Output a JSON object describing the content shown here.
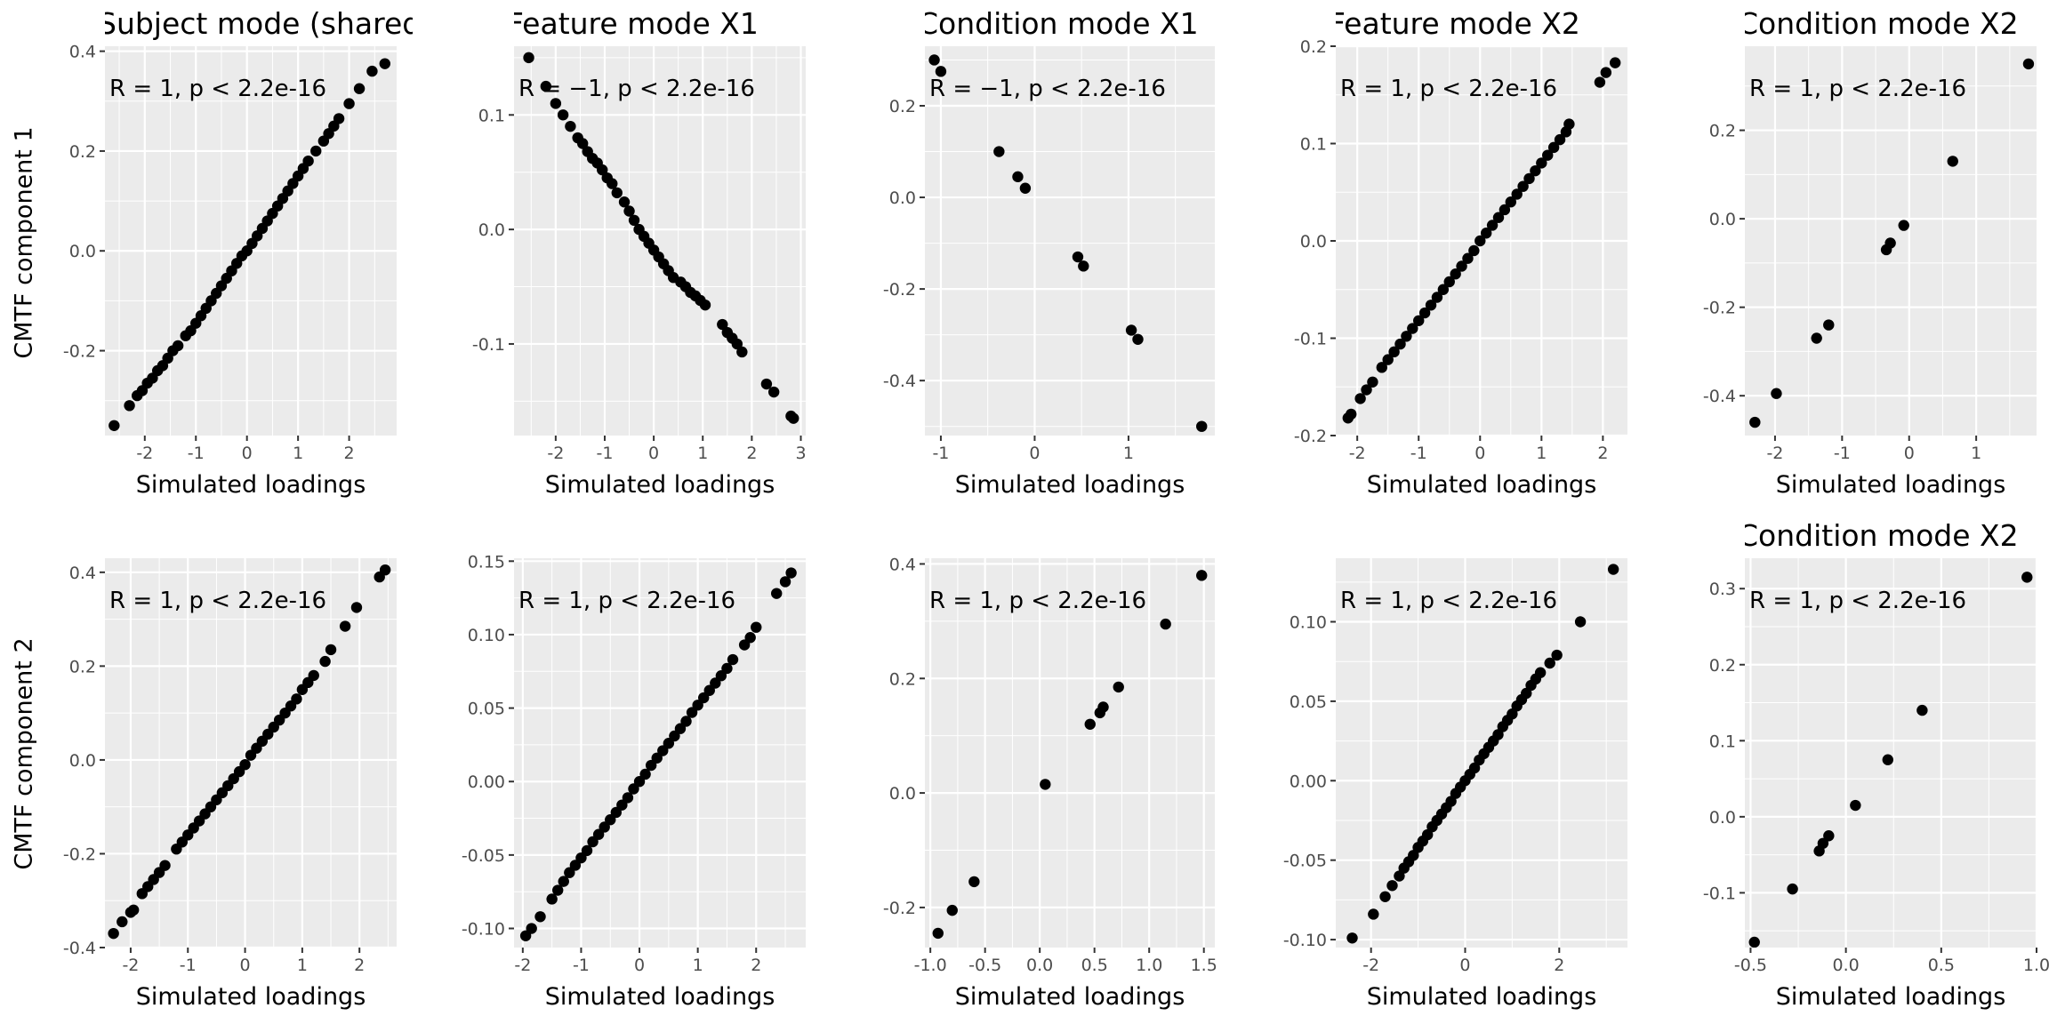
{
  "row_labels": [
    "CMTF component 1",
    "CMTF component 2"
  ],
  "chart_data": [
    {
      "type": "scatter",
      "title": "Subject mode (shared)",
      "xlabel": "Simulated loadings",
      "ylabel": "CMTF component 1",
      "annotation": "R = 1, p < 2.2e-16",
      "xticks": [
        "-2",
        "-1",
        "0",
        "1",
        "2"
      ],
      "yticks": [
        "-0.2",
        "0.0",
        "0.2",
        "0.4"
      ],
      "xlim": [
        -2.78,
        2.93
      ],
      "ylim": [
        -0.37,
        0.41
      ],
      "x": [
        -2.6,
        -2.3,
        -2.15,
        -2.05,
        -1.95,
        -1.85,
        -1.75,
        -1.65,
        -1.55,
        -1.45,
        -1.35,
        -1.2,
        -1.1,
        -1.0,
        -0.9,
        -0.8,
        -0.7,
        -0.6,
        -0.5,
        -0.4,
        -0.3,
        -0.2,
        -0.1,
        0.0,
        0.1,
        0.2,
        0.3,
        0.4,
        0.5,
        0.6,
        0.7,
        0.8,
        0.9,
        1.0,
        1.1,
        1.2,
        1.35,
        1.5,
        1.6,
        1.7,
        1.8,
        2.0,
        2.2,
        2.45,
        2.7
      ],
      "y": [
        -0.35,
        -0.31,
        -0.29,
        -0.28,
        -0.265,
        -0.255,
        -0.24,
        -0.23,
        -0.215,
        -0.2,
        -0.19,
        -0.17,
        -0.16,
        -0.145,
        -0.13,
        -0.115,
        -0.1,
        -0.085,
        -0.07,
        -0.055,
        -0.04,
        -0.025,
        -0.01,
        0.0,
        0.015,
        0.03,
        0.045,
        0.06,
        0.075,
        0.09,
        0.105,
        0.12,
        0.135,
        0.15,
        0.165,
        0.18,
        0.2,
        0.22,
        0.235,
        0.25,
        0.265,
        0.295,
        0.325,
        0.36,
        0.375
      ]
    },
    {
      "type": "scatter",
      "title": "Feature mode X1",
      "xlabel": "Simulated loadings",
      "ylabel": "",
      "annotation": "R = −1, p < 2.2e-16",
      "xticks": [
        "-2",
        "-1",
        "0",
        "1",
        "2",
        "3"
      ],
      "yticks": [
        "-0.1",
        "0.0",
        "0.1"
      ],
      "xlim": [
        -2.85,
        3.1
      ],
      "ylim": [
        -0.18,
        0.16
      ],
      "x": [
        -2.55,
        -2.2,
        -2.0,
        -1.85,
        -1.7,
        -1.55,
        -1.45,
        -1.35,
        -1.25,
        -1.15,
        -1.05,
        -0.95,
        -0.85,
        -0.75,
        -0.6,
        -0.5,
        -0.4,
        -0.3,
        -0.2,
        -0.1,
        0.0,
        0.1,
        0.2,
        0.3,
        0.4,
        0.55,
        0.65,
        0.75,
        0.85,
        0.95,
        1.05,
        1.4,
        1.5,
        1.6,
        1.7,
        1.8,
        2.3,
        2.45,
        2.8,
        2.85
      ],
      "y": [
        0.15,
        0.125,
        0.11,
        0.1,
        0.09,
        0.08,
        0.075,
        0.068,
        0.062,
        0.058,
        0.052,
        0.045,
        0.04,
        0.032,
        0.024,
        0.016,
        0.008,
        0.0,
        -0.006,
        -0.012,
        -0.018,
        -0.024,
        -0.03,
        -0.036,
        -0.042,
        -0.046,
        -0.05,
        -0.055,
        -0.058,
        -0.062,
        -0.066,
        -0.083,
        -0.09,
        -0.095,
        -0.1,
        -0.107,
        -0.135,
        -0.142,
        -0.163,
        -0.165
      ]
    },
    {
      "type": "scatter",
      "title": "Condition mode X1",
      "xlabel": "Simulated loadings",
      "ylabel": "",
      "annotation": "R = −1, p < 2.2e-16",
      "xticks": [
        "-1",
        "0",
        "1"
      ],
      "yticks": [
        "-0.4",
        "-0.2",
        "0.0",
        "0.2"
      ],
      "xlim": [
        -1.17,
        1.92
      ],
      "ylim": [
        -0.52,
        0.33
      ],
      "x": [
        -1.07,
        -1.0,
        -0.38,
        -0.18,
        -0.1,
        0.46,
        0.52,
        1.03,
        1.1,
        1.78
      ],
      "y": [
        0.3,
        0.275,
        0.1,
        0.045,
        0.02,
        -0.13,
        -0.15,
        -0.29,
        -0.31,
        -0.5
      ]
    },
    {
      "type": "scatter",
      "title": "Feature mode X2",
      "xlabel": "Simulated loadings",
      "ylabel": "",
      "annotation": "R = 1, p < 2.2e-16",
      "xticks": [
        "-2",
        "-1",
        "0",
        "1",
        "2"
      ],
      "yticks": [
        "-0.2",
        "-0.1",
        "0.0",
        "0.1",
        "0.2"
      ],
      "xlim": [
        -2.35,
        2.4
      ],
      "ylim": [
        -0.2,
        0.2
      ],
      "x": [
        -2.15,
        -2.1,
        -1.95,
        -1.85,
        -1.75,
        -1.6,
        -1.5,
        -1.4,
        -1.3,
        -1.2,
        -1.1,
        -1.0,
        -0.9,
        -0.8,
        -0.7,
        -0.6,
        -0.5,
        -0.4,
        -0.3,
        -0.2,
        -0.1,
        0.0,
        0.1,
        0.2,
        0.3,
        0.4,
        0.5,
        0.6,
        0.7,
        0.8,
        0.9,
        1.0,
        1.1,
        1.2,
        1.3,
        1.4,
        1.45,
        1.95,
        2.05,
        2.2
      ],
      "y": [
        -0.182,
        -0.178,
        -0.162,
        -0.153,
        -0.145,
        -0.13,
        -0.122,
        -0.114,
        -0.106,
        -0.098,
        -0.09,
        -0.082,
        -0.074,
        -0.066,
        -0.058,
        -0.05,
        -0.042,
        -0.034,
        -0.026,
        -0.018,
        -0.01,
        0.0,
        0.008,
        0.016,
        0.024,
        0.032,
        0.04,
        0.048,
        0.056,
        0.064,
        0.072,
        0.08,
        0.088,
        0.096,
        0.104,
        0.112,
        0.12,
        0.163,
        0.173,
        0.183
      ]
    },
    {
      "type": "scatter",
      "title": "Condition mode X2",
      "xlabel": "Simulated loadings",
      "ylabel": "",
      "annotation": "R = 1, p < 2.2e-16",
      "xticks": [
        "-2",
        "-1",
        "0",
        "1"
      ],
      "yticks": [
        "-0.4",
        "-0.2",
        "0.0",
        "0.2"
      ],
      "xlim": [
        -2.45,
        1.9
      ],
      "ylim": [
        -0.49,
        0.39
      ],
      "x": [
        -2.3,
        -1.98,
        -1.38,
        -1.2,
        -0.34,
        -0.28,
        -0.08,
        0.65,
        1.78
      ],
      "y": [
        -0.46,
        -0.395,
        -0.27,
        -0.24,
        -0.07,
        -0.055,
        -0.015,
        0.13,
        0.35
      ]
    },
    {
      "type": "scatter",
      "title": "",
      "xlabel": "Simulated loadings",
      "ylabel": "CMTF component 2",
      "annotation": "R = 1, p < 2.2e-16",
      "xticks": [
        "-2",
        "-1",
        "0",
        "1",
        "2"
      ],
      "yticks": [
        "-0.4",
        "-0.2",
        "0.0",
        "0.2",
        "0.4"
      ],
      "xlim": [
        -2.45,
        2.65
      ],
      "ylim": [
        -0.4,
        0.43
      ],
      "x": [
        -2.3,
        -2.15,
        -2.0,
        -1.95,
        -1.8,
        -1.7,
        -1.6,
        -1.5,
        -1.4,
        -1.2,
        -1.1,
        -1.0,
        -0.9,
        -0.8,
        -0.7,
        -0.6,
        -0.5,
        -0.4,
        -0.3,
        -0.2,
        -0.1,
        0.0,
        0.1,
        0.2,
        0.3,
        0.4,
        0.5,
        0.6,
        0.7,
        0.8,
        0.9,
        1.0,
        1.1,
        1.2,
        1.4,
        1.5,
        1.75,
        1.95,
        2.35,
        2.45
      ],
      "y": [
        -0.37,
        -0.345,
        -0.325,
        -0.32,
        -0.285,
        -0.27,
        -0.255,
        -0.24,
        -0.225,
        -0.19,
        -0.175,
        -0.16,
        -0.145,
        -0.13,
        -0.115,
        -0.1,
        -0.085,
        -0.07,
        -0.055,
        -0.04,
        -0.025,
        -0.01,
        0.01,
        0.025,
        0.04,
        0.055,
        0.07,
        0.085,
        0.1,
        0.115,
        0.13,
        0.15,
        0.165,
        0.18,
        0.21,
        0.235,
        0.285,
        0.325,
        0.39,
        0.405
      ]
    },
    {
      "type": "scatter",
      "title": "",
      "xlabel": "Simulated loadings",
      "ylabel": "",
      "annotation": "R = 1, p < 2.2e-16",
      "xticks": [
        "-2",
        "-1",
        "0",
        "1",
        "2"
      ],
      "yticks": [
        "-0.10",
        "-0.05",
        "0.00",
        "0.05",
        "0.10",
        "0.15"
      ],
      "xlim": [
        -2.15,
        2.85
      ],
      "ylim": [
        -0.113,
        0.152
      ],
      "x": [
        -1.95,
        -1.85,
        -1.7,
        -1.5,
        -1.4,
        -1.3,
        -1.2,
        -1.1,
        -1.0,
        -0.9,
        -0.8,
        -0.7,
        -0.6,
        -0.5,
        -0.4,
        -0.3,
        -0.2,
        -0.1,
        0.0,
        0.1,
        0.2,
        0.3,
        0.4,
        0.5,
        0.6,
        0.7,
        0.8,
        0.9,
        1.0,
        1.1,
        1.2,
        1.3,
        1.4,
        1.5,
        1.6,
        1.8,
        1.9,
        2.0,
        2.35,
        2.5,
        2.6
      ],
      "y": [
        -0.105,
        -0.1,
        -0.092,
        -0.08,
        -0.074,
        -0.068,
        -0.062,
        -0.057,
        -0.052,
        -0.047,
        -0.041,
        -0.036,
        -0.031,
        -0.026,
        -0.021,
        -0.016,
        -0.011,
        -0.005,
        0.0,
        0.005,
        0.011,
        0.016,
        0.021,
        0.026,
        0.031,
        0.036,
        0.041,
        0.047,
        0.052,
        0.057,
        0.062,
        0.067,
        0.072,
        0.077,
        0.083,
        0.093,
        0.098,
        0.105,
        0.128,
        0.136,
        0.142
      ]
    },
    {
      "type": "scatter",
      "title": "",
      "xlabel": "Simulated loadings",
      "ylabel": "",
      "annotation": "R = 1, p < 2.2e-16",
      "xticks": [
        "-1.0",
        "-0.5",
        "0.0",
        "0.5",
        "1.0",
        "1.5"
      ],
      "yticks": [
        "-0.2",
        "0.0",
        "0.2",
        "0.4"
      ],
      "xlim": [
        -1.05,
        1.6
      ],
      "ylim": [
        -0.27,
        0.41
      ],
      "x": [
        -0.93,
        -0.8,
        -0.6,
        0.05,
        0.46,
        0.55,
        0.58,
        0.72,
        1.15,
        1.48
      ],
      "y": [
        -0.245,
        -0.205,
        -0.155,
        0.015,
        0.12,
        0.14,
        0.15,
        0.185,
        0.295,
        0.38
      ]
    },
    {
      "type": "scatter",
      "title": "",
      "xlabel": "Simulated loadings",
      "ylabel": "",
      "annotation": "R = 1, p < 2.2e-16",
      "xticks": [
        "-2",
        "0",
        "2"
      ],
      "yticks": [
        "-0.10",
        "-0.05",
        "0.00",
        "0.05",
        "0.10"
      ],
      "xlim": [
        -2.75,
        3.45
      ],
      "ylim": [
        -0.105,
        0.14
      ],
      "x": [
        -2.4,
        -1.95,
        -1.7,
        -1.55,
        -1.4,
        -1.3,
        -1.2,
        -1.1,
        -1.0,
        -0.9,
        -0.8,
        -0.7,
        -0.6,
        -0.5,
        -0.4,
        -0.3,
        -0.2,
        -0.1,
        0.0,
        0.1,
        0.2,
        0.3,
        0.4,
        0.5,
        0.6,
        0.7,
        0.8,
        0.9,
        1.0,
        1.1,
        1.2,
        1.3,
        1.4,
        1.5,
        1.6,
        1.8,
        1.95,
        2.45,
        3.15
      ],
      "y": [
        -0.099,
        -0.084,
        -0.073,
        -0.066,
        -0.06,
        -0.055,
        -0.051,
        -0.047,
        -0.042,
        -0.038,
        -0.034,
        -0.029,
        -0.025,
        -0.021,
        -0.017,
        -0.013,
        -0.008,
        -0.004,
        0.0,
        0.004,
        0.008,
        0.013,
        0.017,
        0.021,
        0.025,
        0.029,
        0.034,
        0.038,
        0.042,
        0.047,
        0.051,
        0.055,
        0.06,
        0.064,
        0.068,
        0.074,
        0.079,
        0.1,
        0.133
      ]
    },
    {
      "type": "scatter",
      "title": "Condition mode X2",
      "xlabel": "Simulated loadings",
      "ylabel": "",
      "annotation": "R = 1, p < 2.2e-16",
      "xticks": [
        "-0.5",
        "0.0",
        "0.5",
        "1.0"
      ],
      "yticks": [
        "-0.1",
        "0.0",
        "0.1",
        "0.2",
        "0.3"
      ],
      "xlim": [
        -0.53,
        1.0
      ],
      "ylim": [
        -0.172,
        0.34
      ],
      "x": [
        -0.48,
        -0.28,
        -0.14,
        -0.12,
        -0.09,
        0.05,
        0.22,
        0.4,
        0.95
      ],
      "y": [
        -0.165,
        -0.095,
        -0.045,
        -0.035,
        -0.025,
        0.015,
        0.075,
        0.14,
        0.315
      ]
    }
  ]
}
